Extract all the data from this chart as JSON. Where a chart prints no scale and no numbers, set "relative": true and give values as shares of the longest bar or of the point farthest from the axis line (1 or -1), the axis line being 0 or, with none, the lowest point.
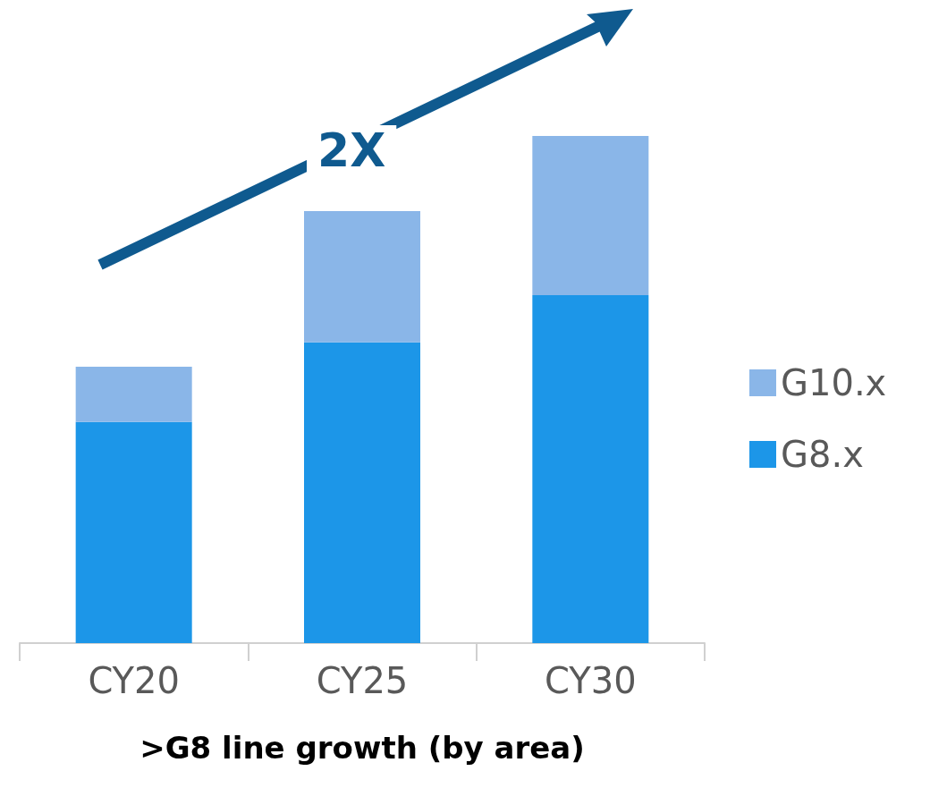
{
  "chart_data": {
    "type": "bar",
    "stacked": true,
    "relative": true,
    "categories": [
      "CY20",
      "CY25",
      "CY30"
    ],
    "series": [
      {
        "name": "G8.x",
        "color": "#1c96e8",
        "values": [
          0.436,
          0.593,
          0.686
        ]
      },
      {
        "name": "G10.x",
        "color": "#8ab6e8",
        "values": [
          0.109,
          0.259,
          0.314
        ]
      }
    ],
    "xlabel": ">G8 line growth (by area)",
    "annotations": [
      "2X"
    ],
    "legend": "right"
  }
}
